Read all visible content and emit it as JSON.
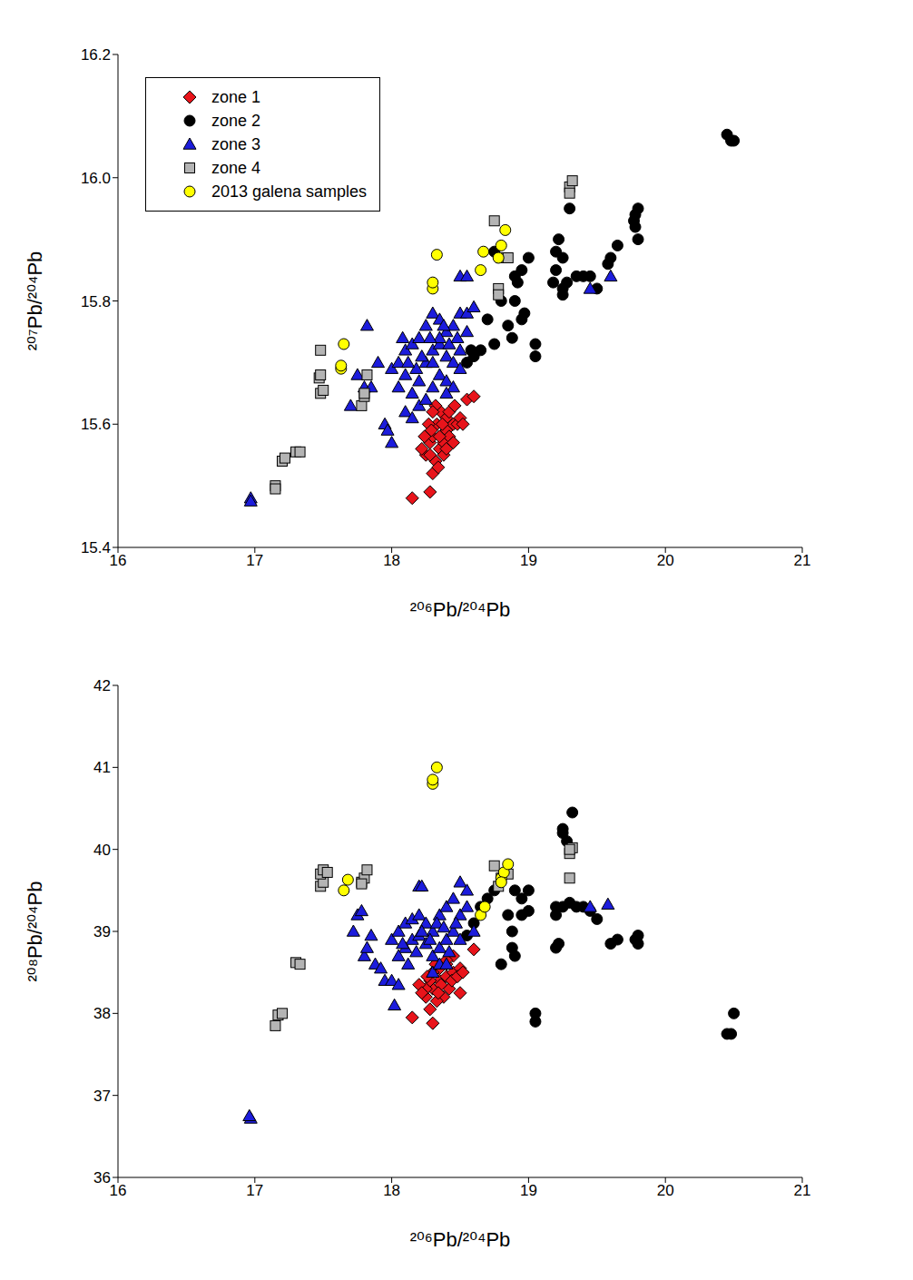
{
  "chart_data": [
    {
      "type": "scatter",
      "x_label": "²⁰⁶Pb/²⁰⁴Pb",
      "y_label": "²⁰⁷Pb/²⁰⁴Pb",
      "xlim": [
        16,
        21
      ],
      "ylim": [
        15.4,
        16.2
      ],
      "xticks": [
        16,
        17,
        18,
        19,
        20,
        21
      ],
      "yticks": [
        15.4,
        15.6,
        15.8,
        {
          "value": 16,
          "label": "16.0"
        },
        16.2
      ],
      "legend": "upper left",
      "series": [
        {
          "name": "zone 1",
          "color": "#e8141b",
          "marker": "diamond",
          "x": [
            18.15,
            18.28,
            18.3,
            18.32,
            18.25,
            18.22,
            18.28,
            18.35,
            18.3,
            18.38,
            18.4,
            18.33,
            18.36,
            18.32,
            18.4,
            18.45,
            18.42,
            18.48,
            18.5,
            18.55,
            18.6,
            18.35,
            18.27,
            18.24,
            18.38,
            18.45,
            18.52,
            18.3,
            18.42,
            18.37,
            18.28,
            18.34,
            18.46,
            18.29,
            18.4
          ],
          "values": [
            15.48,
            15.49,
            15.52,
            15.54,
            15.55,
            15.56,
            15.57,
            15.56,
            15.58,
            15.57,
            15.59,
            15.6,
            15.62,
            15.63,
            15.61,
            15.6,
            15.58,
            15.6,
            15.61,
            15.64,
            15.645,
            15.58,
            15.6,
            15.58,
            15.55,
            15.57,
            15.6,
            15.62,
            15.62,
            15.6,
            15.55,
            15.53,
            15.63,
            15.59,
            15.56
          ]
        },
        {
          "name": "zone 2",
          "color": "#000000",
          "marker": "circle",
          "x": [
            18.6,
            18.65,
            18.75,
            18.7,
            18.85,
            18.8,
            18.9,
            18.95,
            18.97,
            18.88,
            19.05,
            19.05,
            18.9,
            18.95,
            19.0,
            18.92,
            18.75,
            19.2,
            19.22,
            19.2,
            19.25,
            19.3,
            19.18,
            19.25,
            19.28,
            19.35,
            19.4,
            19.45,
            19.5,
            19.25,
            19.6,
            19.58,
            19.65,
            19.78,
            19.78,
            19.8,
            19.8,
            19.77,
            20.45,
            20.48,
            20.5,
            18.55,
            18.58
          ],
          "values": [
            15.71,
            15.72,
            15.73,
            15.77,
            15.76,
            15.8,
            15.8,
            15.77,
            15.78,
            15.74,
            15.73,
            15.71,
            15.84,
            15.85,
            15.87,
            15.83,
            15.88,
            15.88,
            15.9,
            15.85,
            15.87,
            15.95,
            15.83,
            15.82,
            15.83,
            15.84,
            15.84,
            15.84,
            15.82,
            15.81,
            15.87,
            15.86,
            15.89,
            15.92,
            15.94,
            15.95,
            15.9,
            15.93,
            16.07,
            16.06,
            16.06,
            15.7,
            15.72
          ]
        },
        {
          "name": "zone 3",
          "color": "#1c1cdc",
          "marker": "triangle",
          "x": [
            16.97,
            16.97,
            17.7,
            17.75,
            17.8,
            17.82,
            17.85,
            17.95,
            18.0,
            17.97,
            18.5,
            18.55,
            19.45,
            19.6,
            18.0,
            18.05,
            18.1,
            18.15,
            18.2,
            18.25,
            18.3,
            18.35,
            18.4,
            18.45,
            18.5,
            18.55,
            18.6,
            18.05,
            18.1,
            18.15,
            18.2,
            18.25,
            18.3,
            18.35,
            18.4,
            18.45,
            18.5,
            18.55,
            18.2,
            18.25,
            18.3,
            18.35,
            18.4,
            18.45,
            18.5,
            18.1,
            18.15,
            18.3,
            18.35,
            18.38,
            18.42,
            18.28,
            18.22,
            18.18,
            18.12,
            18.08,
            17.9,
            18.48,
            18.4
          ],
          "values": [
            15.48,
            15.475,
            15.63,
            15.68,
            15.66,
            15.76,
            15.66,
            15.6,
            15.57,
            15.59,
            15.84,
            15.84,
            15.82,
            15.84,
            15.69,
            15.7,
            15.72,
            15.73,
            15.74,
            15.76,
            15.78,
            15.77,
            15.75,
            15.76,
            15.78,
            15.78,
            15.79,
            15.66,
            15.68,
            15.65,
            15.67,
            15.7,
            15.72,
            15.73,
            15.71,
            15.7,
            15.72,
            15.75,
            15.63,
            15.64,
            15.66,
            15.68,
            15.67,
            15.66,
            15.69,
            15.62,
            15.61,
            15.7,
            15.74,
            15.76,
            15.73,
            15.74,
            15.71,
            15.69,
            15.7,
            15.74,
            15.7,
            15.74,
            15.65
          ]
        },
        {
          "name": "zone 4",
          "color": "#b4b4b4",
          "marker": "square",
          "x": [
            17.15,
            17.15,
            17.2,
            17.22,
            17.3,
            17.33,
            17.48,
            17.5,
            17.47,
            17.48,
            17.48,
            17.78,
            17.8,
            17.8,
            17.82,
            18.75,
            18.78,
            18.78,
            18.8,
            18.85,
            19.3,
            19.32,
            19.3
          ],
          "values": [
            15.5,
            15.495,
            15.54,
            15.545,
            15.555,
            15.555,
            15.65,
            15.655,
            15.675,
            15.68,
            15.72,
            15.63,
            15.645,
            15.65,
            15.68,
            15.93,
            15.82,
            15.81,
            15.87,
            15.87,
            15.985,
            15.995,
            15.975
          ]
        },
        {
          "name": "2013 galena samples",
          "color": "#ffff00",
          "marker": "circle",
          "x": [
            17.65,
            17.63,
            17.63,
            18.3,
            18.3,
            18.33,
            18.65,
            18.67,
            18.78,
            18.8,
            18.83
          ],
          "values": [
            15.73,
            15.69,
            15.695,
            15.82,
            15.83,
            15.875,
            15.85,
            15.88,
            15.87,
            15.89,
            15.915
          ]
        }
      ]
    },
    {
      "type": "scatter",
      "x_label": "²⁰⁶Pb/²⁰⁴Pb",
      "y_label": "²⁰⁸Pb/²⁰⁴Pb",
      "xlim": [
        16,
        21
      ],
      "ylim": [
        36,
        42
      ],
      "xticks": [
        16,
        17,
        18,
        19,
        20,
        21
      ],
      "yticks": [
        36,
        37,
        38,
        39,
        40,
        41,
        42
      ],
      "series": [
        {
          "color": "#e8141b",
          "marker": "diamond",
          "x": [
            18.15,
            18.3,
            18.28,
            18.25,
            18.3,
            18.35,
            18.4,
            18.45,
            18.5,
            18.5,
            18.6,
            18.45,
            18.4,
            18.35,
            18.3,
            18.25,
            18.2,
            18.38,
            18.42,
            18.33,
            18.28,
            18.36,
            18.44,
            18.48,
            18.32,
            18.26,
            18.22,
            18.4,
            18.52,
            18.34
          ],
          "values": [
            37.95,
            37.88,
            38.05,
            38.2,
            38.3,
            38.4,
            38.45,
            38.5,
            38.55,
            38.25,
            38.78,
            38.7,
            38.6,
            38.55,
            38.5,
            38.3,
            38.35,
            38.2,
            38.3,
            38.15,
            38.4,
            38.35,
            38.4,
            38.45,
            38.6,
            38.45,
            38.25,
            38.65,
            38.5,
            38.25
          ]
        },
        {
          "color": "#000000",
          "marker": "circle",
          "x": [
            18.6,
            18.65,
            18.7,
            18.75,
            18.8,
            18.85,
            18.88,
            18.88,
            18.9,
            18.9,
            18.95,
            19.0,
            18.95,
            19.0,
            19.05,
            19.05,
            19.2,
            19.22,
            19.2,
            19.25,
            19.25,
            19.25,
            19.28,
            19.32,
            19.3,
            19.35,
            19.4,
            19.45,
            19.5,
            19.6,
            19.65,
            19.8,
            19.8,
            19.78,
            20.45,
            20.48,
            20.5,
            18.55,
            19.2
          ],
          "values": [
            39.1,
            39.3,
            39.4,
            39.5,
            38.6,
            39.2,
            39.0,
            38.8,
            38.7,
            39.5,
            39.4,
            39.5,
            39.2,
            39.25,
            38.0,
            37.9,
            38.8,
            38.85,
            39.2,
            39.3,
            40.2,
            40.25,
            40.1,
            40.45,
            39.35,
            39.3,
            39.3,
            39.25,
            39.15,
            38.85,
            38.9,
            38.85,
            38.95,
            38.9,
            37.75,
            37.75,
            38.0,
            38.95,
            39.3
          ]
        },
        {
          "color": "#1c1cdc",
          "marker": "triangle",
          "x": [
            16.97,
            16.96,
            17.72,
            17.75,
            17.78,
            17.8,
            17.82,
            17.85,
            17.88,
            17.92,
            17.95,
            18.0,
            18.05,
            18.02,
            18.2,
            18.22,
            19.45,
            19.58,
            18.5,
            18.55,
            18.0,
            18.05,
            18.1,
            18.15,
            18.2,
            18.25,
            18.3,
            18.35,
            18.4,
            18.45,
            18.5,
            18.55,
            18.6,
            18.1,
            18.15,
            18.2,
            18.25,
            18.3,
            18.35,
            18.4,
            18.45,
            18.5,
            18.05,
            18.12,
            18.18,
            18.28,
            18.33,
            18.38,
            18.42,
            18.47,
            18.3,
            18.35,
            18.4,
            18.22,
            18.08
          ],
          "values": [
            36.72,
            36.75,
            39.0,
            39.2,
            39.25,
            38.7,
            38.8,
            38.95,
            38.6,
            38.55,
            38.4,
            38.4,
            38.35,
            38.1,
            39.55,
            39.55,
            39.3,
            39.33,
            39.6,
            39.5,
            38.9,
            39.0,
            39.1,
            39.15,
            39.2,
            39.1,
            39.0,
            39.2,
            39.3,
            39.4,
            39.2,
            39.3,
            39.0,
            38.8,
            38.9,
            38.95,
            38.85,
            38.7,
            38.8,
            38.9,
            39.0,
            38.9,
            38.7,
            38.6,
            38.75,
            38.9,
            39.1,
            39.05,
            38.75,
            39.1,
            38.5,
            38.6,
            38.6,
            39.0,
            38.85
          ]
        },
        {
          "color": "#b4b4b4",
          "marker": "square",
          "x": [
            17.15,
            17.17,
            17.2,
            17.3,
            17.33,
            17.48,
            17.5,
            17.48,
            17.5,
            17.53,
            17.78,
            17.8,
            17.82,
            17.78,
            18.75,
            18.78,
            18.8,
            18.85,
            19.3,
            19.3,
            19.32,
            19.3
          ],
          "values": [
            37.85,
            37.98,
            38.0,
            38.62,
            38.6,
            39.55,
            39.6,
            39.7,
            39.75,
            39.72,
            39.6,
            39.65,
            39.75,
            39.58,
            39.8,
            39.55,
            39.65,
            39.7,
            39.65,
            39.95,
            40.02,
            40.0
          ]
        },
        {
          "color": "#ffff00",
          "marker": "circle",
          "x": [
            17.65,
            17.68,
            18.3,
            18.3,
            18.33,
            18.65,
            18.68,
            18.8,
            18.82,
            18.85,
            18.8
          ],
          "values": [
            39.5,
            39.63,
            40.8,
            40.85,
            41.0,
            39.2,
            39.3,
            39.65,
            39.72,
            39.82,
            39.6
          ]
        }
      ]
    }
  ]
}
